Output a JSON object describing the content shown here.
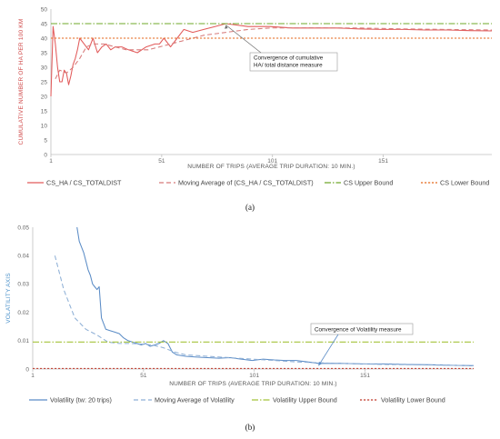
{
  "chart_data": [
    {
      "type": "line",
      "caption": "(a)",
      "xlabel": "NUMBER OF TRIPS (AVERAGE TRIP DURATION: 10 MIN.)",
      "ylabel": "CUMULATIVE NUMBER OF HA PER 100 KM",
      "xlim": [
        1,
        200
      ],
      "ylim": [
        0,
        50
      ],
      "xticks": [
        1,
        51,
        101,
        151
      ],
      "yticks": [
        0,
        5,
        10,
        15,
        20,
        25,
        30,
        35,
        40,
        45,
        50
      ],
      "colors": {
        "axis_title": "#d04a4a",
        "series_1": "#e25b5b",
        "series_2": "#d77a7a",
        "upper": "#6fa82a",
        "lower": "#e56a1e"
      },
      "annotation": {
        "lines": [
          "Convergence of cumulative",
          "HA/ total distance measure"
        ],
        "arrow_to": [
          80,
          44.5
        ]
      },
      "series": [
        {
          "name": "CS_HA / CS_TOTALDIST",
          "style": "solid",
          "x": [
            1,
            2,
            3,
            4,
            5,
            6,
            7,
            8,
            9,
            10,
            11,
            12,
            13,
            14,
            16,
            18,
            20,
            22,
            24,
            26,
            28,
            30,
            33,
            36,
            40,
            44,
            48,
            50,
            52,
            55,
            58,
            61,
            65,
            70,
            75,
            80,
            90,
            100,
            110,
            120,
            130,
            140,
            150,
            160,
            170,
            180,
            190,
            200
          ],
          "y": [
            20,
            44,
            38,
            30,
            25,
            25,
            29,
            28,
            24,
            27,
            31,
            33,
            36,
            40,
            38,
            36,
            40,
            35,
            37,
            38,
            36,
            37,
            37,
            36,
            35,
            37,
            38,
            38,
            40,
            37,
            40,
            43,
            42,
            43,
            44,
            45,
            44,
            44,
            43.5,
            43.5,
            43.5,
            43.2,
            43,
            43,
            42.8,
            42.8,
            42.6,
            42.5
          ]
        },
        {
          "name": "Moving Average of (CS_HA / CS_TOTALDIST)",
          "style": "dashed",
          "x": [
            3,
            5,
            8,
            11,
            14,
            17,
            20,
            25,
            30,
            35,
            40,
            45,
            50,
            55,
            60,
            65,
            70,
            80,
            90,
            100,
            120,
            140,
            160,
            180,
            200
          ],
          "y": [
            26,
            29,
            28,
            30,
            33,
            37,
            38,
            38,
            37,
            36,
            36,
            36,
            37,
            38,
            39,
            40,
            41,
            42,
            43,
            43.5,
            43.6,
            43.5,
            43.2,
            43,
            42.8
          ]
        },
        {
          "name": "CS Upper Bound",
          "style": "dash-dot",
          "value": 45
        },
        {
          "name": "CS Lower Bound",
          "style": "dotted",
          "value": 40
        }
      ]
    },
    {
      "type": "line",
      "caption": "(b)",
      "xlabel": "NUMBER OF TRIPS (AVERAGE TRIP DURATION: 10 MIN.)",
      "ylabel": "VOLATILITY AXIS",
      "xlim": [
        1,
        200
      ],
      "ylim": [
        0,
        0.05
      ],
      "xticks": [
        1,
        51,
        101,
        151
      ],
      "yticks": [
        0,
        0.01,
        0.02,
        0.03,
        0.04,
        0.05
      ],
      "ytick_labels": [
        "0",
        "0.01",
        "0.02",
        "0.03",
        "0.04",
        "0.05"
      ],
      "colors": {
        "axis_title": "#4a90c9",
        "series_1": "#5b8cc6",
        "series_2": "#8fb0d6",
        "upper": "#a5c43a",
        "lower": "#c0392b"
      },
      "annotation": {
        "lines": [
          "Convergence of Volatility measure"
        ],
        "arrow_to": [
          130,
          0.0012
        ]
      },
      "series": [
        {
          "name": "Volatility (tw: 20 trips)",
          "style": "solid",
          "x": [
            21,
            22,
            24,
            25,
            26,
            27,
            28,
            29,
            30,
            31,
            32,
            33,
            34,
            36,
            38,
            40,
            42,
            44,
            46,
            48,
            50,
            52,
            54,
            56,
            58,
            60,
            62,
            64,
            66,
            70,
            75,
            80,
            85,
            90,
            95,
            100,
            105,
            110,
            115,
            120,
            125,
            130,
            140,
            150,
            160,
            170,
            180,
            190,
            200
          ],
          "y": [
            0.05,
            0.045,
            0.041,
            0.038,
            0.035,
            0.033,
            0.03,
            0.029,
            0.028,
            0.029,
            0.018,
            0.016,
            0.014,
            0.0135,
            0.013,
            0.0125,
            0.011,
            0.01,
            0.0095,
            0.009,
            0.0085,
            0.009,
            0.008,
            0.0085,
            0.009,
            0.01,
            0.009,
            0.006,
            0.005,
            0.0045,
            0.0042,
            0.004,
            0.0038,
            0.004,
            0.0035,
            0.003,
            0.0035,
            0.0032,
            0.003,
            0.003,
            0.0025,
            0.002,
            0.002,
            0.0018,
            0.0018,
            0.0016,
            0.0015,
            0.0013,
            0.0012
          ]
        },
        {
          "name": "Moving Average of Volatility",
          "style": "dashed",
          "x": [
            11,
            15,
            20,
            25,
            30,
            35,
            40,
            45,
            50,
            55,
            60,
            65,
            70,
            80,
            90,
            100,
            110,
            120,
            130,
            140,
            160,
            180,
            200
          ],
          "y": [
            0.04,
            0.028,
            0.018,
            0.014,
            0.012,
            0.0095,
            0.009,
            0.009,
            0.0088,
            0.0085,
            0.0075,
            0.006,
            0.005,
            0.0045,
            0.004,
            0.0035,
            0.003,
            0.0025,
            0.0022,
            0.002,
            0.0016,
            0.0014,
            0.0012
          ]
        },
        {
          "name": "Volatility Upper Bound",
          "style": "dash-dot",
          "value": 0.0095
        },
        {
          "name": "Volatility Lower Bound",
          "style": "dotted",
          "value": 0.0002
        }
      ]
    }
  ]
}
